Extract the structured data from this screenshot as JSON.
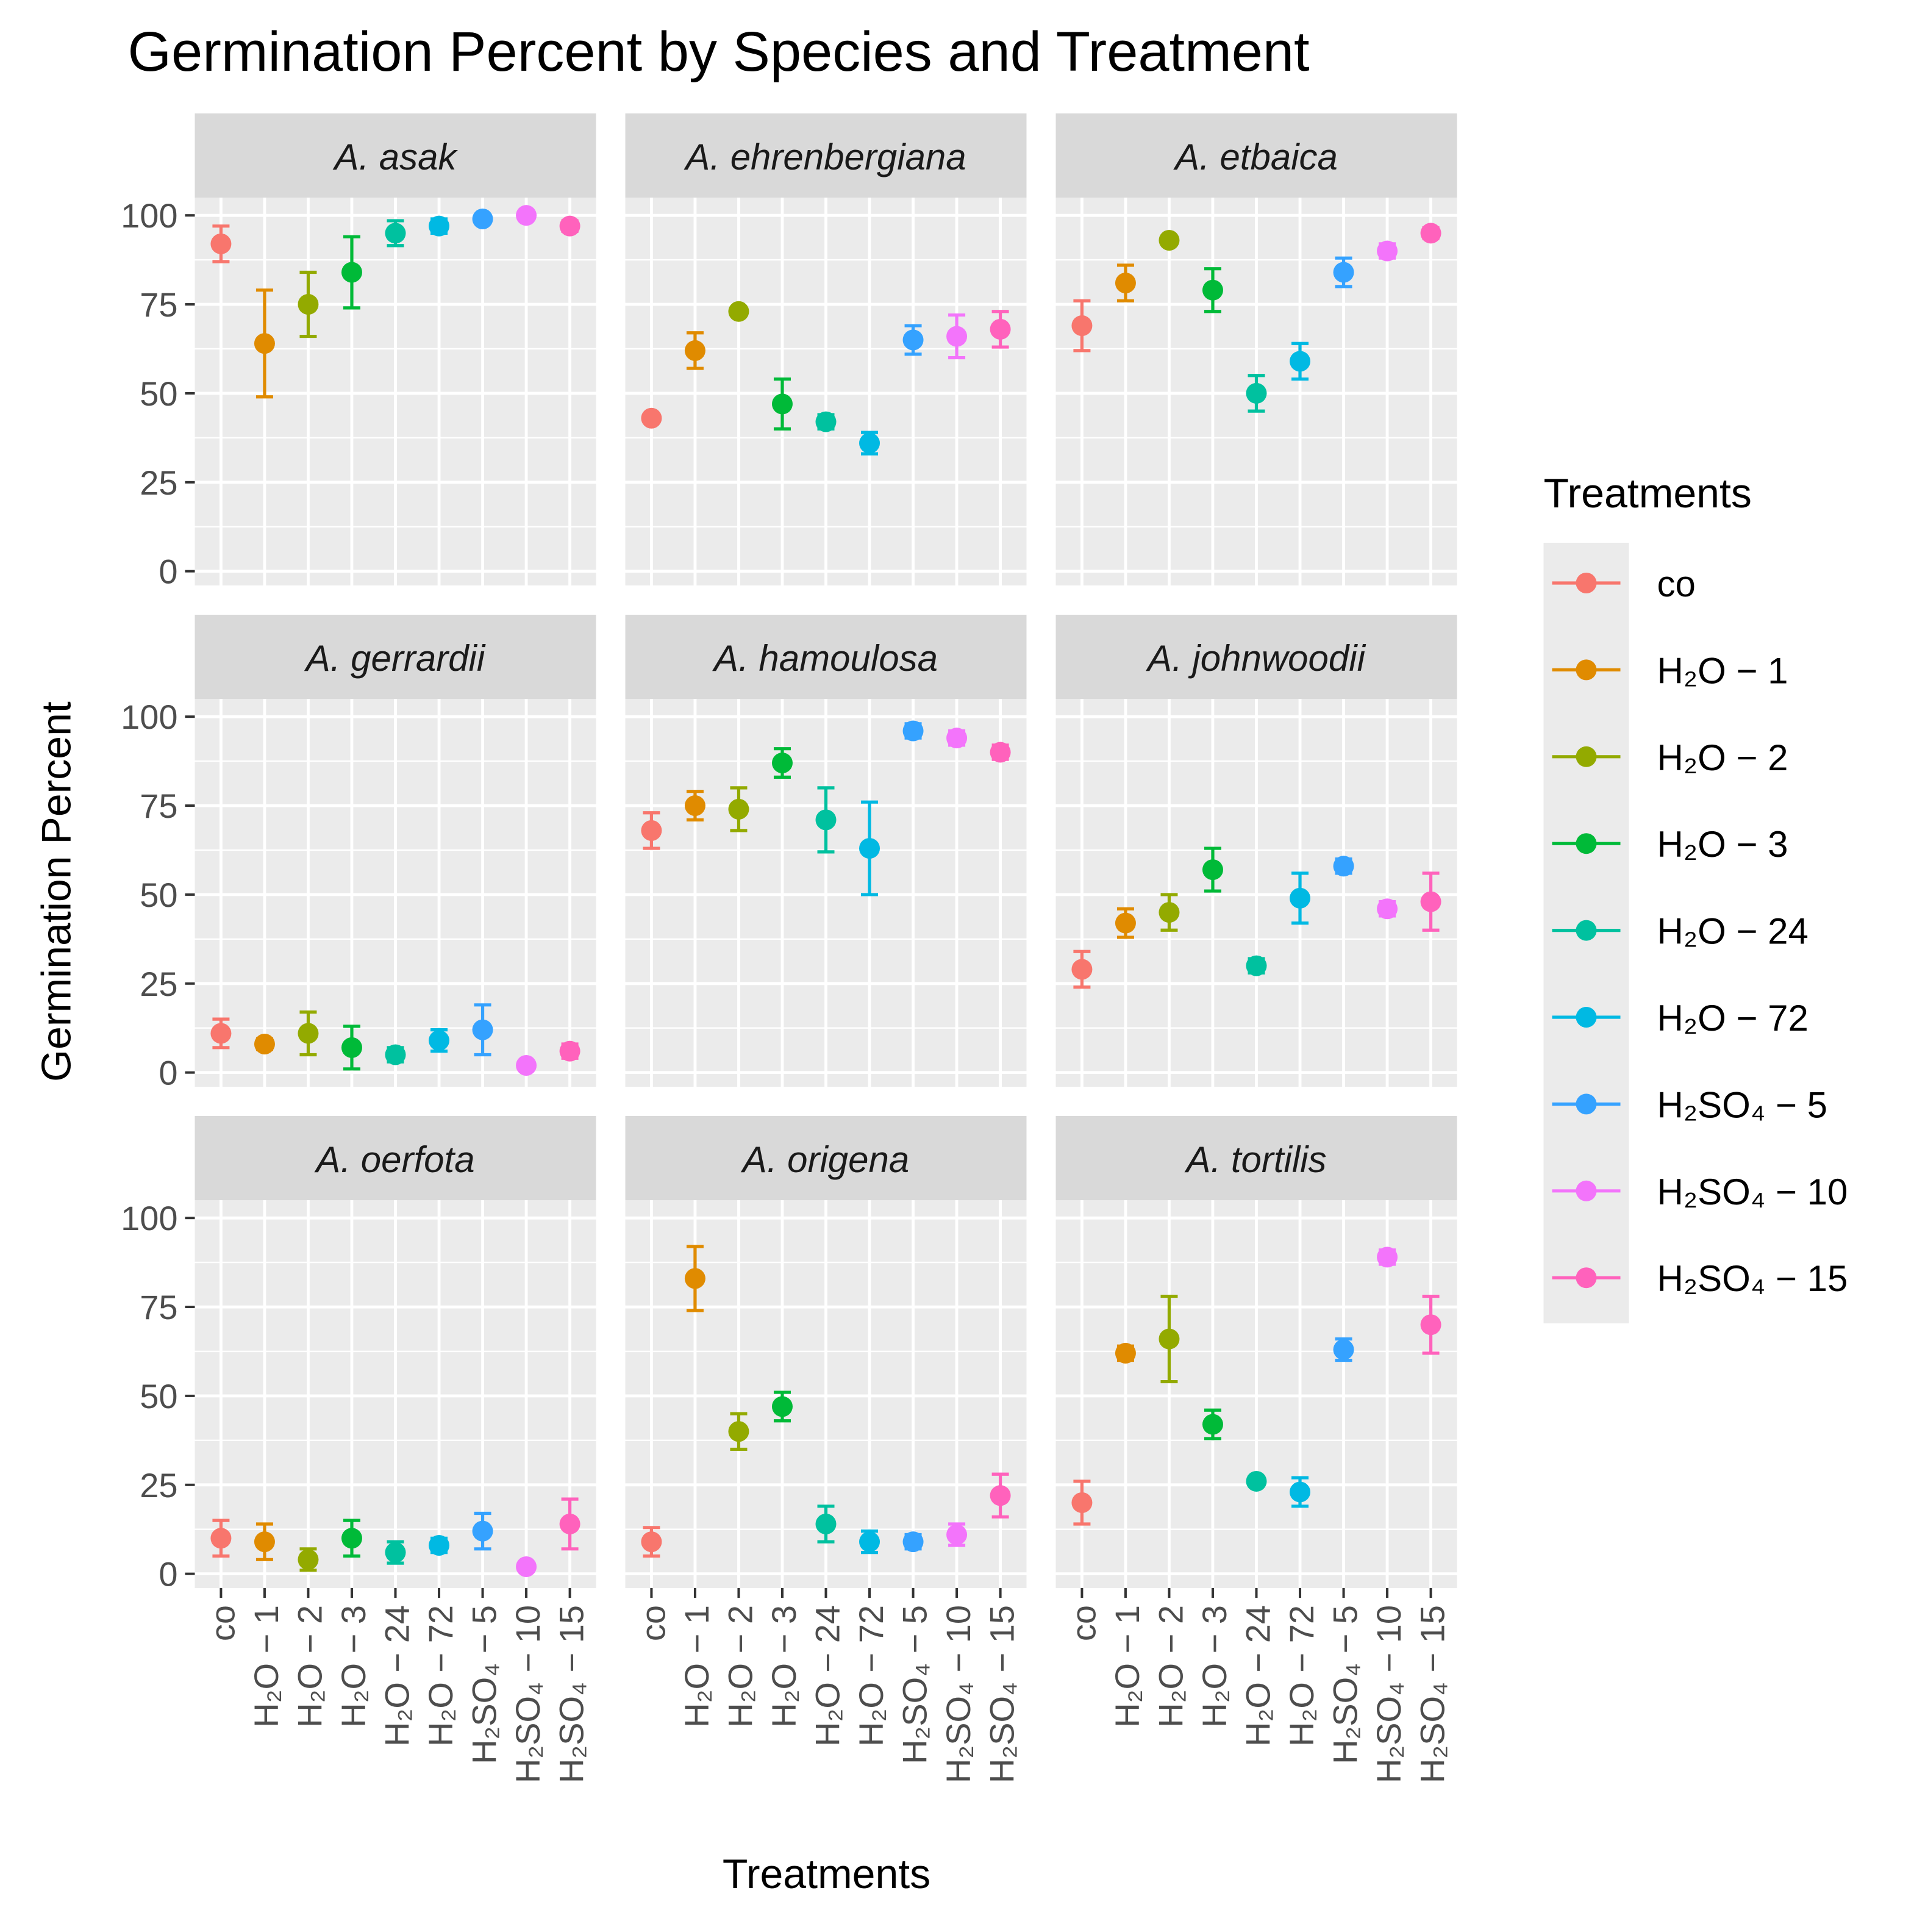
{
  "chart_data": {
    "type": "scatter",
    "title": "Germination Percent by Species and Treatment",
    "xlabel": "Treatments",
    "ylabel": "Germination Percent",
    "ylim": [
      -4,
      105
    ],
    "yticks": [
      0,
      25,
      50,
      75,
      100
    ],
    "grid": true,
    "legend": {
      "title": "Treatments",
      "placement": "right"
    },
    "categories": [
      "co",
      "H₂O − 1",
      "H₂O − 2",
      "H₂O − 3",
      "H₂O − 24",
      "H₂O − 72",
      "H₂SO₄ − 5",
      "H₂SO₄ − 10",
      "H₂SO₄ − 15"
    ],
    "colors": [
      "#F8766D",
      "#E08B00",
      "#93AA00",
      "#00BA38",
      "#00C19F",
      "#00B9E3",
      "#35A2FF",
      "#F374FB",
      "#FF62BC"
    ],
    "panels": [
      {
        "species": "A. asak",
        "mean": [
          92,
          64,
          75,
          84,
          95,
          97,
          99,
          100,
          97
        ],
        "se": [
          5,
          15,
          9,
          10,
          3.5,
          2,
          1,
          0.5,
          1.5
        ]
      },
      {
        "species": "A. ehrenbergiana",
        "mean": [
          43,
          62,
          73,
          47,
          42,
          36,
          65,
          66,
          68
        ],
        "se": [
          0.5,
          5,
          1,
          7,
          2,
          3,
          4,
          6,
          5
        ]
      },
      {
        "species": "A. etbaica",
        "mean": [
          69,
          81,
          93,
          79,
          50,
          59,
          84,
          90,
          95
        ],
        "se": [
          7,
          5,
          1,
          6,
          5,
          5,
          4,
          2,
          1.5
        ]
      },
      {
        "species": "A. gerrardii",
        "mean": [
          11,
          8,
          11,
          7,
          5,
          9,
          12,
          2,
          6
        ],
        "se": [
          4,
          1.5,
          6,
          6,
          2,
          3,
          7,
          1,
          2
        ]
      },
      {
        "species": "A. hamoulosa",
        "mean": [
          68,
          75,
          74,
          87,
          71,
          63,
          96,
          94,
          90
        ],
        "se": [
          5,
          4,
          6,
          4,
          9,
          13,
          2,
          2,
          2
        ]
      },
      {
        "species": "A. johnwoodii",
        "mean": [
          29,
          42,
          45,
          57,
          30,
          49,
          58,
          46,
          48
        ],
        "se": [
          5,
          4,
          5,
          6,
          2,
          7,
          2,
          2,
          8
        ]
      },
      {
        "species": "A. oerfota",
        "mean": [
          10,
          9,
          4,
          10,
          6,
          8,
          12,
          2,
          14
        ],
        "se": [
          5,
          5,
          3,
          5,
          3,
          2,
          5,
          1,
          7
        ]
      },
      {
        "species": "A. origena",
        "mean": [
          9,
          83,
          40,
          47,
          14,
          9,
          9,
          11,
          22
        ],
        "se": [
          4,
          9,
          5,
          4,
          5,
          3,
          2,
          3,
          6
        ]
      },
      {
        "species": "A. tortilis",
        "mean": [
          20,
          62,
          66,
          42,
          26,
          23,
          63,
          89,
          70
        ],
        "se": [
          6,
          2,
          12,
          4,
          1,
          4,
          3,
          2,
          8
        ]
      }
    ]
  }
}
